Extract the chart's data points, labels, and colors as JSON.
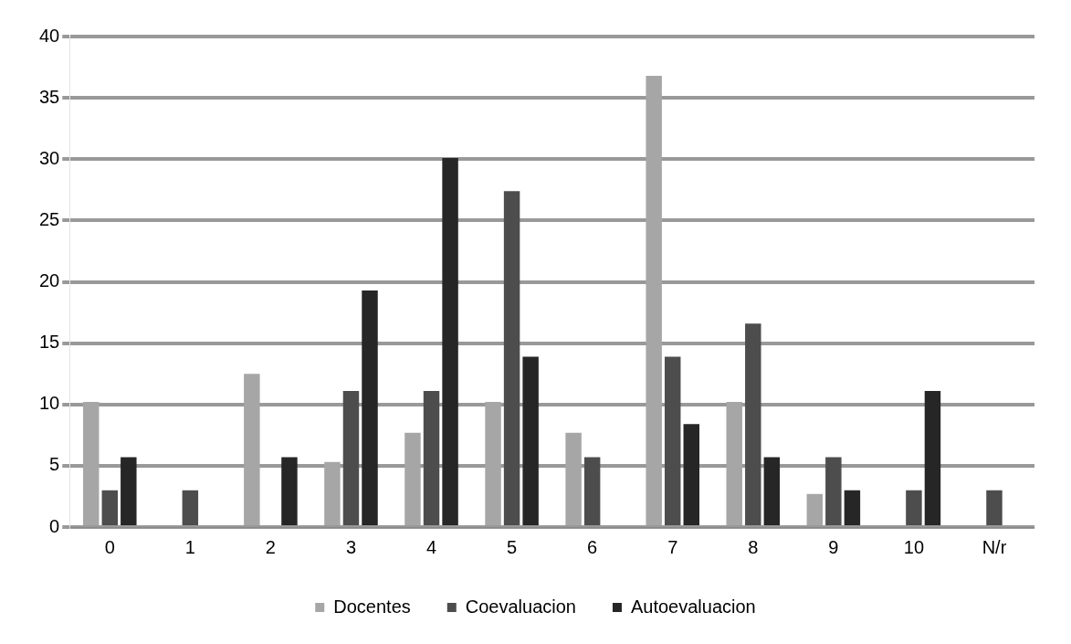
{
  "chart_data": {
    "type": "bar",
    "categories": [
      "0",
      "1",
      "2",
      "3",
      "4",
      "5",
      "6",
      "7",
      "8",
      "9",
      "10",
      "N/r"
    ],
    "series": [
      {
        "name": "Docentes",
        "color": "#a6a6a6",
        "values": [
          10.2,
          0,
          12.5,
          5.3,
          7.7,
          10.2,
          7.7,
          36.8,
          10.2,
          2.7,
          0,
          0
        ]
      },
      {
        "name": "Coevaluacion",
        "color": "#4d4d4d",
        "values": [
          3,
          3,
          0,
          11.1,
          11.1,
          27.4,
          5.7,
          13.9,
          16.6,
          5.7,
          3,
          3
        ]
      },
      {
        "name": "Autoevaluacion",
        "color": "#262626",
        "values": [
          5.7,
          0,
          5.7,
          19.3,
          30.1,
          13.9,
          0,
          8.4,
          5.7,
          3,
          11.1,
          0
        ]
      }
    ],
    "ylim": [
      0,
      40
    ],
    "yticks": [
      0,
      5,
      10,
      15,
      20,
      25,
      30,
      35,
      40
    ],
    "grid": "y",
    "legend": "bottom"
  }
}
